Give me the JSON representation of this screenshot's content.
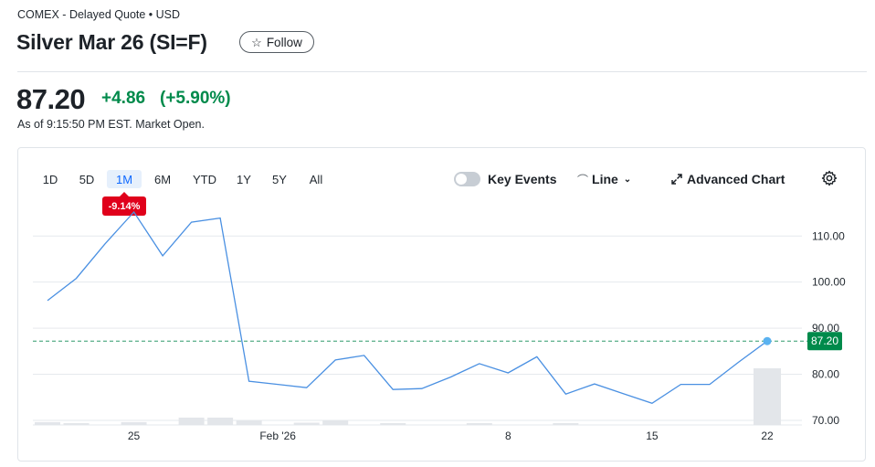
{
  "header": {
    "exchange": "COMEX - Delayed Quote • USD",
    "title": "Silver Mar 26 (SI=F)",
    "follow_label": "Follow",
    "follow_icon": "star-outline-icon"
  },
  "quote": {
    "price": "87.20",
    "change": "+4.86",
    "change_percent": "(+5.90%)",
    "as_of": "As of 9:15:50 PM EST. Market Open.",
    "change_color": "#008a4b"
  },
  "chart_controls": {
    "ranges": [
      "1D",
      "5D",
      "1M",
      "6M",
      "YTD",
      "1Y",
      "5Y",
      "All"
    ],
    "active_range": "1M",
    "range_change": "-9.14%",
    "key_events_label": "Key Events",
    "key_events_enabled": false,
    "chart_type_label": "Line",
    "advanced_chart_label": "Advanced Chart"
  },
  "chart_data": {
    "type": "line",
    "title": "",
    "xlabel": "",
    "ylabel": "",
    "x_tick_labels": [
      "25",
      "Feb '26",
      "8",
      "15",
      "22"
    ],
    "y_tick_labels": [
      "110.00",
      "100.00",
      "90.00",
      "80.00",
      "70.00"
    ],
    "ylim": [
      69,
      116
    ],
    "grid": true,
    "current_price_label": "87.20",
    "current_price": 87.2,
    "line_color": "#4a90e2",
    "current_price_color": "#008a4b",
    "series": [
      {
        "values": [
          96.0,
          100.8,
          108.3,
          115.2,
          105.7,
          113.0,
          113.9,
          78.5,
          77.8,
          77.1,
          83.1,
          84.1,
          76.7,
          76.9,
          79.4,
          82.3,
          80.3,
          83.8,
          75.7,
          77.9,
          75.8,
          73.7,
          77.8,
          77.8,
          82.6,
          87.2
        ]
      }
    ],
    "volume": [
      0.05,
      0.03,
      0.0,
      0.05,
      0.0,
      0.13,
      0.13,
      0.08,
      0.0,
      0.04,
      0.08,
      0.0,
      0.03,
      0.0,
      0.0,
      0.03,
      0.0,
      0.0,
      0.02,
      0.0,
      0.0,
      0.0,
      0.0,
      0.0,
      0.0,
      1.0
    ]
  }
}
